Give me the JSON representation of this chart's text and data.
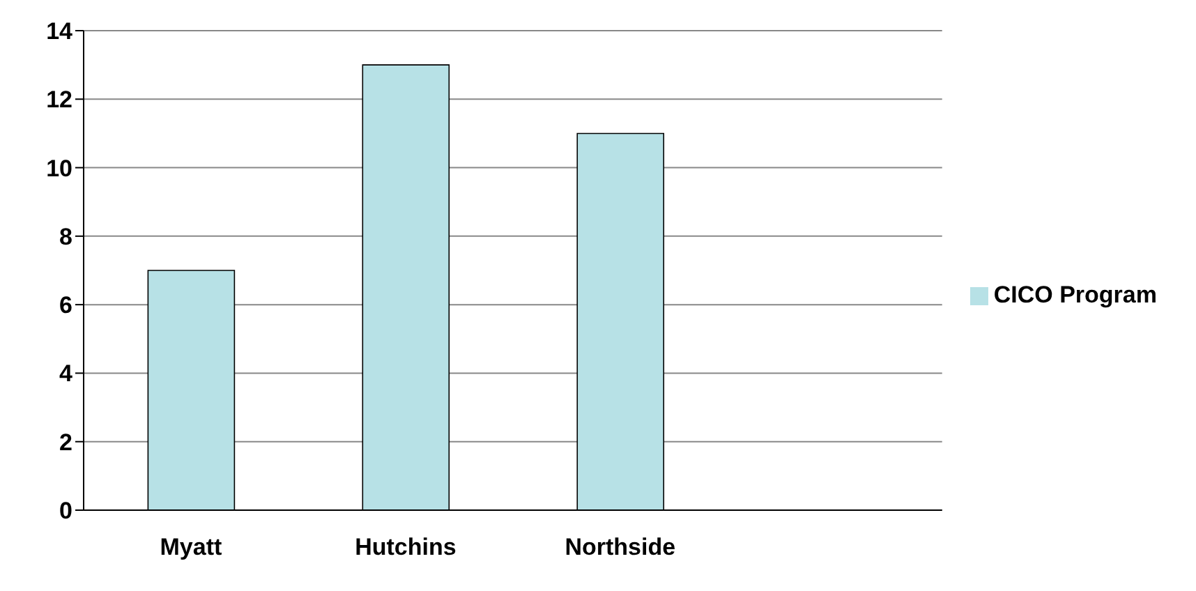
{
  "chart_data": {
    "type": "bar",
    "categories": [
      "Myatt",
      "Hutchins",
      "Northside",
      null
    ],
    "series": [
      {
        "name": "CICO Program",
        "color": "#b7e1e6",
        "values": [
          7,
          13,
          11,
          null
        ]
      }
    ],
    "ylim": [
      0,
      14
    ],
    "yticks": [
      0,
      2,
      4,
      6,
      8,
      10,
      12,
      14
    ],
    "grid": "y",
    "legend": "right"
  }
}
